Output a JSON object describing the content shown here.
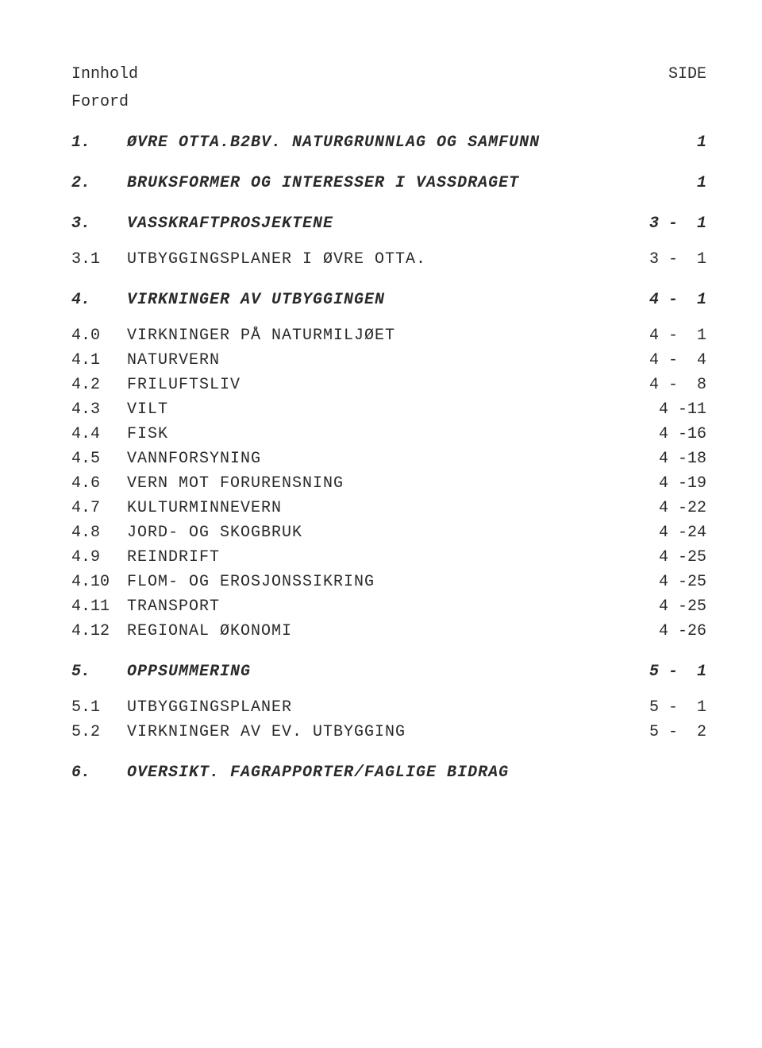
{
  "header": {
    "left": "Innhold",
    "right": "SIDE"
  },
  "forord": "Forord",
  "entries": [
    {
      "num": "1.",
      "title": "ØVRE OTTA.B2BV. NATURGRUNNLAG OG SAMFUNN",
      "page": "1",
      "heading": true,
      "gap": "lg"
    },
    {
      "num": "2.",
      "title": "BRUKSFORMER OG INTERESSER I VASSDRAGET",
      "page": "1",
      "heading": true,
      "gap": "lg"
    },
    {
      "num": "3.",
      "title": "VASSKRAFTPROSJEKTENE",
      "page": "3 -  1",
      "heading": true,
      "gap": "lg"
    },
    {
      "num": "3.1",
      "title": "UTBYGGINGSPLANER I ØVRE OTTA.",
      "page": "3 -  1",
      "heading": false,
      "gap": "sm"
    },
    {
      "num": "4.",
      "title": "VIRKNINGER AV UTBYGGINGEN",
      "page": "4 -  1",
      "heading": true,
      "gap": "lg"
    },
    {
      "num": "4.0",
      "title": "VIRKNINGER PÅ NATURMILJØET",
      "page": "4 -  1",
      "heading": false,
      "gap": "sm"
    },
    {
      "num": "4.1",
      "title": "NATURVERN",
      "page": "4 -  4",
      "heading": false,
      "gap": ""
    },
    {
      "num": "4.2",
      "title": "FRILUFTSLIV",
      "page": "4 -  8",
      "heading": false,
      "gap": ""
    },
    {
      "num": "4.3",
      "title": "VILT",
      "page": "4 -11",
      "heading": false,
      "gap": ""
    },
    {
      "num": "4.4",
      "title": "FISK",
      "page": "4 -16",
      "heading": false,
      "gap": ""
    },
    {
      "num": "4.5",
      "title": "VANNFORSYNING",
      "page": "4 -18",
      "heading": false,
      "gap": ""
    },
    {
      "num": "4.6",
      "title": "VERN MOT FORURENSNING",
      "page": "4 -19",
      "heading": false,
      "gap": ""
    },
    {
      "num": "4.7",
      "title": "KULTURMINNEVERN",
      "page": "4 -22",
      "heading": false,
      "gap": ""
    },
    {
      "num": "4.8",
      "title": "JORD- OG SKOGBRUK",
      "page": "4 -24",
      "heading": false,
      "gap": ""
    },
    {
      "num": "4.9",
      "title": "REINDRIFT",
      "page": "4 -25",
      "heading": false,
      "gap": ""
    },
    {
      "num": "4.10",
      "title": "FLOM- OG EROSJONSSIKRING",
      "page": "4 -25",
      "heading": false,
      "gap": ""
    },
    {
      "num": "4.11",
      "title": "TRANSPORT",
      "page": "4 -25",
      "heading": false,
      "gap": ""
    },
    {
      "num": "4.12",
      "title": "REGIONAL ØKONOMI",
      "page": "4 -26",
      "heading": false,
      "gap": ""
    },
    {
      "num": "5.",
      "title": "OPPSUMMERING",
      "page": "5 -  1",
      "heading": true,
      "gap": "lg"
    },
    {
      "num": "5.1",
      "title": "UTBYGGINGSPLANER",
      "page": "5 -  1",
      "heading": false,
      "gap": "sm"
    },
    {
      "num": "5.2",
      "title": "VIRKNINGER AV EV. UTBYGGING",
      "page": "5 -  2",
      "heading": false,
      "gap": ""
    },
    {
      "num": "6.",
      "title": "OVERSIKT. FAGRAPPORTER/FAGLIGE BIDRAG",
      "page": "",
      "heading": true,
      "gap": "lg"
    }
  ]
}
